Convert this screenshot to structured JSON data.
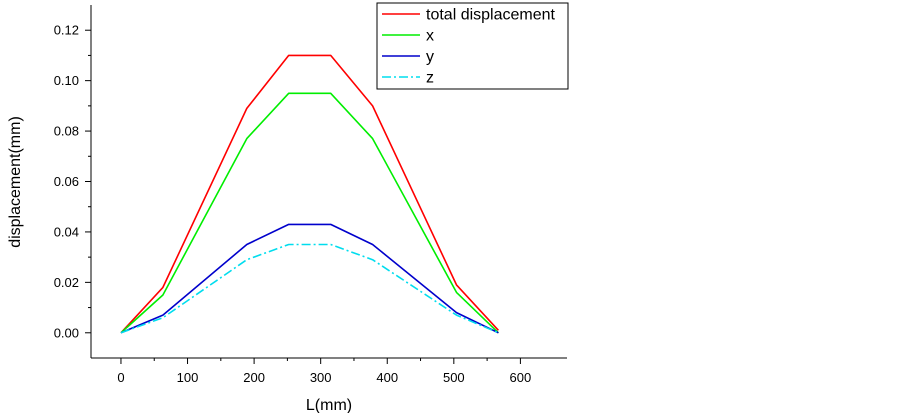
{
  "chart_data": {
    "type": "line",
    "title": "",
    "xlabel": "L(mm)",
    "ylabel": "displacement(mm)",
    "xlim": [
      -45,
      670
    ],
    "ylim": [
      -0.01,
      0.13
    ],
    "xticks": [
      0,
      100,
      200,
      300,
      400,
      500,
      600
    ],
    "yticks": [
      0.0,
      0.02,
      0.04,
      0.06,
      0.08,
      0.1,
      0.12
    ],
    "x_tick_labels": [
      "0",
      "100",
      "200",
      "300",
      "400",
      "500",
      "600"
    ],
    "y_tick_labels": [
      "0.00",
      "0.02",
      "0.04",
      "0.06",
      "0.08",
      "0.10",
      "0.12"
    ],
    "grid": false,
    "legend_position": "top-right",
    "x": [
      0,
      63,
      189,
      252,
      315,
      378,
      504,
      567
    ],
    "series": [
      {
        "name": "total displacement",
        "color": "#ff0000",
        "dash": "solid",
        "values": [
          0.0,
          0.018,
          0.089,
          0.11,
          0.11,
          0.09,
          0.019,
          0.001
        ]
      },
      {
        "name": "x",
        "color": "#00ee00",
        "dash": "solid",
        "values": [
          0.0,
          0.015,
          0.077,
          0.095,
          0.095,
          0.077,
          0.016,
          0.0
        ]
      },
      {
        "name": "y",
        "color": "#0000cc",
        "dash": "solid",
        "values": [
          0.0,
          0.007,
          0.035,
          0.043,
          0.043,
          0.035,
          0.008,
          0.0
        ]
      },
      {
        "name": "z",
        "color": "#00ddee",
        "dash": "dashdot",
        "values": [
          0.0,
          0.006,
          0.029,
          0.035,
          0.035,
          0.029,
          0.007,
          0.0
        ]
      }
    ]
  }
}
